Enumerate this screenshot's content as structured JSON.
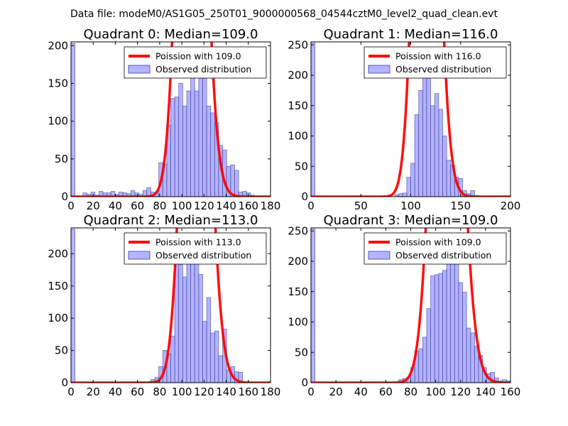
{
  "figure": {
    "suptitle": "Data file: modeM0/AS1G05_250T01_9000000568_04544cztM0_level2_quad_clean.evt",
    "colors": {
      "bar_fill": "#8080ff",
      "bar_edge": "#3f3f9f",
      "curve": "#ff0000",
      "axes": "#000000"
    }
  },
  "chart_data": [
    {
      "type": "bar",
      "title": "Quadrant 0: Median=109.0",
      "xlim": [
        0,
        180
      ],
      "ylim": [
        0,
        205
      ],
      "xticks": [
        0,
        20,
        40,
        60,
        80,
        100,
        120,
        140,
        160,
        180
      ],
      "yticks": [
        0,
        50,
        100,
        150,
        200
      ],
      "bin_width": 3.6,
      "bin_starts": [
        0,
        10.8,
        14.4,
        18,
        21.6,
        25.2,
        28.8,
        32.4,
        36,
        39.6,
        43.2,
        46.8,
        50.4,
        54,
        57.6,
        61.2,
        64.8,
        68.4,
        72,
        75.6,
        79.2,
        82.8,
        86.4,
        90,
        93.6,
        97.2,
        100.8,
        104.4,
        108,
        111.6,
        115.2,
        118.8,
        122.4,
        126,
        129.6,
        133.2,
        136.8,
        140.4,
        144,
        147.6,
        151.2,
        154.8,
        158.4,
        162,
        165.6,
        169.2
      ],
      "counts": [
        203,
        5,
        3,
        6,
        2,
        7,
        5,
        5,
        7,
        3,
        6,
        5,
        4,
        8,
        5,
        3,
        8,
        12,
        6,
        5,
        45,
        43,
        95,
        130,
        132,
        150,
        120,
        140,
        157,
        140,
        195,
        160,
        120,
        111,
        98,
        68,
        62,
        40,
        42,
        35,
        6,
        7,
        5,
        2,
        1,
        1
      ],
      "legend": {
        "entries": [
          "Poission with 109.0",
          "Observed distribution"
        ],
        "location": "upper right"
      },
      "poisson": {
        "label": "Poission with 109.0",
        "mean": 109.0,
        "scale": 23000
      }
    },
    {
      "type": "bar",
      "title": "Quadrant 1: Median=116.0",
      "xlim": [
        0,
        200
      ],
      "ylim": [
        0,
        255
      ],
      "xticks": [
        0,
        50,
        100,
        150,
        200
      ],
      "yticks": [
        0,
        50,
        100,
        150,
        200,
        250
      ],
      "bin_width": 4,
      "bin_starts": [
        0,
        84,
        88,
        92,
        96,
        100,
        104,
        108,
        112,
        116,
        120,
        124,
        128,
        132,
        136,
        140,
        144,
        148,
        152,
        156,
        160,
        164
      ],
      "counts": [
        253,
        3,
        5,
        6,
        32,
        55,
        135,
        175,
        200,
        235,
        150,
        170,
        144,
        100,
        60,
        52,
        32,
        30,
        10,
        5,
        10,
        2
      ],
      "legend": {
        "entries": [
          "Poission with 116.0",
          "Observed distribution"
        ],
        "location": "upper right"
      },
      "poisson": {
        "label": "Poission with 116.0",
        "mean": 116.0,
        "scale": 26000
      }
    },
    {
      "type": "bar",
      "title": "Quadrant 2: Median=113.0",
      "xlim": [
        0,
        180
      ],
      "ylim": [
        0,
        240
      ],
      "xticks": [
        0,
        20,
        40,
        60,
        80,
        100,
        120,
        140,
        160,
        180
      ],
      "yticks": [
        0,
        50,
        100,
        150,
        200
      ],
      "bin_width": 3.6,
      "bin_starts": [
        0,
        57.6,
        72,
        75.6,
        79.2,
        82.8,
        86.4,
        90,
        93.6,
        97.2,
        100.8,
        104.4,
        108,
        111.6,
        115.2,
        118.8,
        122.4,
        126,
        129.6,
        133.2,
        136.8,
        140.4,
        144,
        147.6,
        151.2
      ],
      "counts": [
        238,
        1,
        5,
        8,
        25,
        50,
        45,
        72,
        200,
        183,
        164,
        200,
        232,
        200,
        168,
        95,
        132,
        77,
        80,
        42,
        83,
        20,
        25,
        17,
        16
      ],
      "legend": {
        "entries": [
          "Poission with 113.0",
          "Observed distribution"
        ],
        "location": "upper right"
      },
      "poisson": {
        "label": "Poission with 113.0",
        "mean": 113.0,
        "scale": 24500
      }
    },
    {
      "type": "bar",
      "title": "Quadrant 3: Median=109.0",
      "xlim": [
        0,
        160
      ],
      "ylim": [
        0,
        255
      ],
      "xticks": [
        0,
        20,
        40,
        60,
        80,
        100,
        120,
        140,
        160
      ],
      "yticks": [
        0,
        50,
        100,
        150,
        200,
        250
      ],
      "bin_width": 3.2,
      "bin_starts": [
        0,
        70.4,
        73.6,
        76.8,
        80,
        83.2,
        86.4,
        89.6,
        92.8,
        96,
        99.2,
        102.4,
        105.6,
        108.8,
        112,
        115.2,
        118.4,
        121.6,
        124.8,
        128,
        131.2,
        134.4,
        137.6,
        140.8,
        144,
        147.2,
        150.4,
        153.6,
        156.8
      ],
      "counts": [
        253,
        5,
        7,
        9,
        25,
        52,
        56,
        75,
        122,
        176,
        178,
        180,
        185,
        220,
        235,
        212,
        165,
        149,
        90,
        82,
        60,
        45,
        25,
        15,
        17,
        8,
        3,
        5,
        3
      ],
      "legend": {
        "entries": [
          "Poission with 109.0",
          "Observed distribution"
        ],
        "location": "upper right"
      },
      "poisson": {
        "label": "Poission with 109.0",
        "mean": 109.0,
        "scale": 24800
      }
    }
  ]
}
